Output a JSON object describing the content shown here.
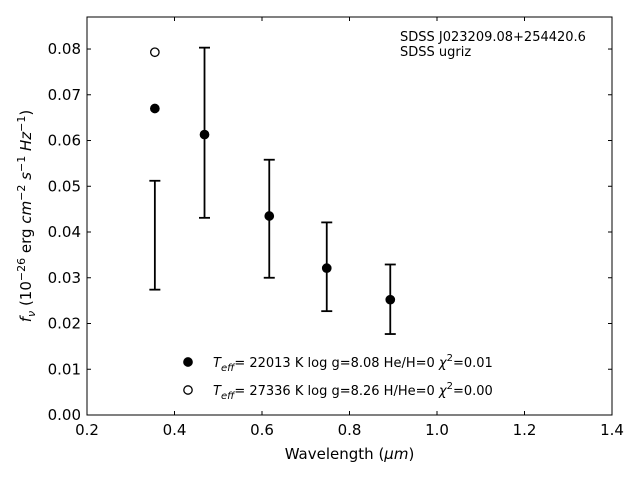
{
  "chart_data": {
    "type": "scatter",
    "title": "",
    "annotation": [
      "SDSS J023209.08+254420.6",
      "SDSS ugriz"
    ],
    "xlabel": "Wavelength (μm)",
    "ylabel": "f_ν (10^-26 erg cm^-2 s^-1 Hz^-1)",
    "xlim": [
      0.2,
      1.4
    ],
    "ylim": [
      0.0,
      0.087
    ],
    "xticks": [
      0.2,
      0.4,
      0.6,
      0.8,
      1.0,
      1.2,
      1.4
    ],
    "yticks": [
      0.0,
      0.01,
      0.02,
      0.03,
      0.04,
      0.05,
      0.06,
      0.07,
      0.08
    ],
    "grid": false,
    "legend_position": "bottom-center",
    "observed": {
      "filters": [
        "u",
        "g",
        "r",
        "i",
        "z"
      ],
      "x": [
        0.3551,
        0.4686,
        0.6166,
        0.748,
        0.8932
      ],
      "y": [
        0.0393,
        0.0617,
        0.0429,
        0.0324,
        0.0253
      ],
      "err": [
        0.0119,
        0.0186,
        0.0129,
        0.0097,
        0.0076
      ]
    },
    "series": [
      {
        "name": "T_eff= 22013 K  log g=8.08  He/H=0  χ²=0.01",
        "marker": "filled-circle",
        "x": [
          0.3551,
          0.4686,
          0.6166,
          0.748,
          0.8932
        ],
        "y": [
          0.067,
          0.0613,
          0.0435,
          0.0321,
          0.0252
        ]
      },
      {
        "name": "T_eff= 27336 K  log g=8.26  H/He=0  χ²=0.00",
        "marker": "open-circle",
        "x": [
          0.3551
        ],
        "y": [
          0.0793
        ]
      }
    ]
  }
}
